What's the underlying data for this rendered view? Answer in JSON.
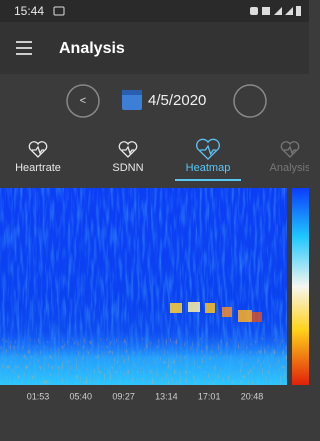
{
  "status_bar": {
    "time": "15:44"
  },
  "header": {
    "title": "Analysis"
  },
  "date_nav": {
    "prev": "<",
    "date": "4/5/2020"
  },
  "tabs": [
    {
      "label": "Heartrate",
      "active": false
    },
    {
      "label": "SDNN",
      "active": false
    },
    {
      "label": "Heatmap",
      "active": true
    },
    {
      "label": "Analysis",
      "active": false
    }
  ],
  "heatmap": {
    "x_labels": [
      "01:53",
      "05:40",
      "09:27",
      "13:14",
      "17:01",
      "20:48"
    ]
  }
}
